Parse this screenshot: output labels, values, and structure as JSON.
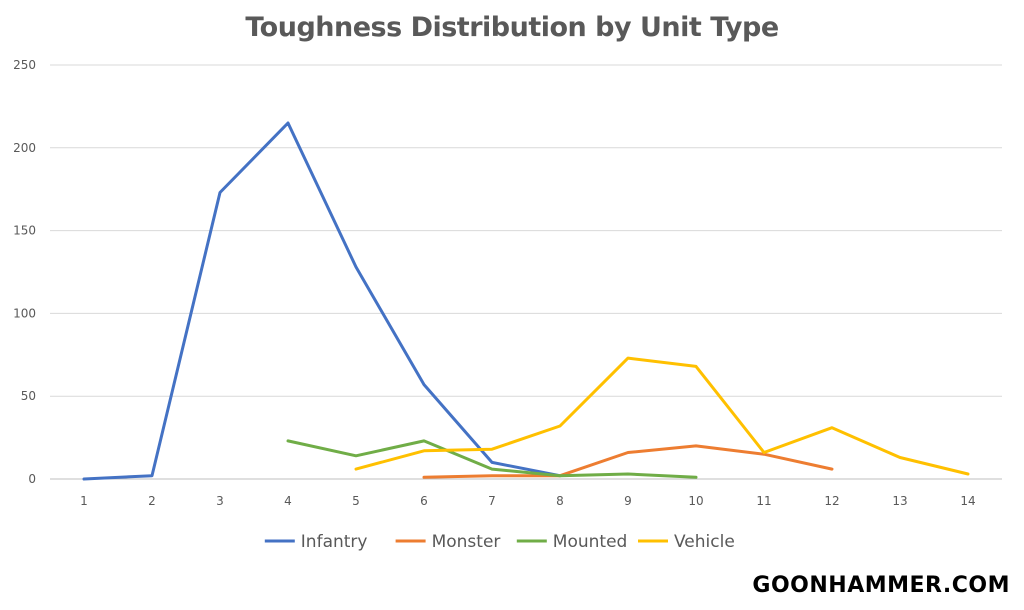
{
  "chart_data": {
    "type": "line",
    "title": "Toughness Distribution by Unit Type",
    "xlabel": "",
    "ylabel": "",
    "x": [
      1,
      2,
      3,
      4,
      5,
      6,
      7,
      8,
      9,
      10,
      11,
      12,
      13,
      14
    ],
    "ylim": [
      0,
      250
    ],
    "yticks": [
      0,
      50,
      100,
      150,
      200,
      250
    ],
    "grid": true,
    "legend_position": "bottom",
    "series": [
      {
        "name": "Infantry",
        "color": "#4472C4",
        "values": [
          0,
          2,
          173,
          215,
          128,
          57,
          10,
          2,
          null,
          null,
          null,
          null,
          null,
          null
        ]
      },
      {
        "name": "Monster",
        "color": "#ED7D31",
        "values": [
          null,
          null,
          null,
          null,
          null,
          1,
          2,
          2,
          16,
          20,
          15,
          6,
          null,
          null
        ]
      },
      {
        "name": "Mounted",
        "color": "#70AD47",
        "values": [
          null,
          null,
          null,
          23,
          14,
          23,
          6,
          2,
          3,
          1,
          null,
          null,
          null,
          null
        ]
      },
      {
        "name": "Vehicle",
        "color": "#FFC000",
        "values": [
          null,
          null,
          null,
          null,
          6,
          17,
          18,
          32,
          73,
          68,
          16,
          31,
          13,
          3
        ]
      }
    ]
  },
  "watermark": "GOONHAMMER.COM"
}
